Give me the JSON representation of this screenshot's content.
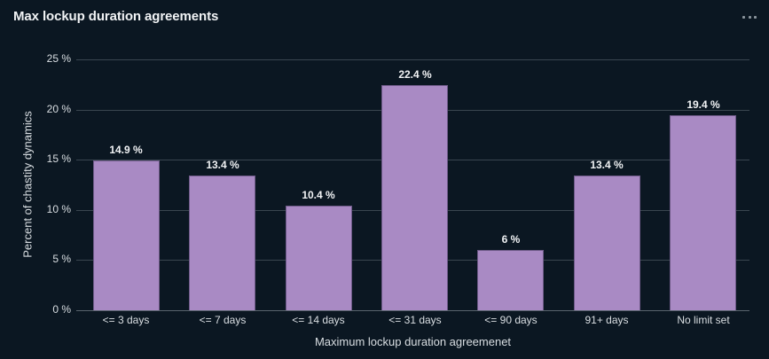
{
  "card": {
    "title": "Max lockup duration agreements",
    "menu_icon": "ellipsis-horizontal-icon"
  },
  "colors": {
    "background": "#0b1722",
    "bar_fill": "#a98ac4",
    "bar_border": "#6e5a88",
    "gridline": "#3a4650",
    "text": "#d9dee2"
  },
  "chart_data": {
    "type": "bar",
    "title": "Max lockup duration agreements",
    "xlabel": "Maximum lockup duration agreemenet",
    "ylabel": "Percent of chastity dynamics",
    "categories": [
      "<= 3 days",
      "<= 7 days",
      "<= 14 days",
      "<= 31 days",
      "<= 90 days",
      "91+ days",
      "No limit set"
    ],
    "values": [
      14.9,
      13.4,
      10.4,
      22.4,
      6,
      13.4,
      19.4
    ],
    "value_labels": [
      "14.9 %",
      "13.4 %",
      "10.4 %",
      "22.4 %",
      "6 %",
      "13.4 %",
      "19.4 %"
    ],
    "ylim": [
      0,
      25
    ],
    "yticks": [
      0,
      5,
      10,
      15,
      20,
      25
    ],
    "ytick_labels": [
      "0 %",
      "5 %",
      "10 %",
      "15 %",
      "20 %",
      "25 %"
    ],
    "grid": true,
    "legend": null
  }
}
